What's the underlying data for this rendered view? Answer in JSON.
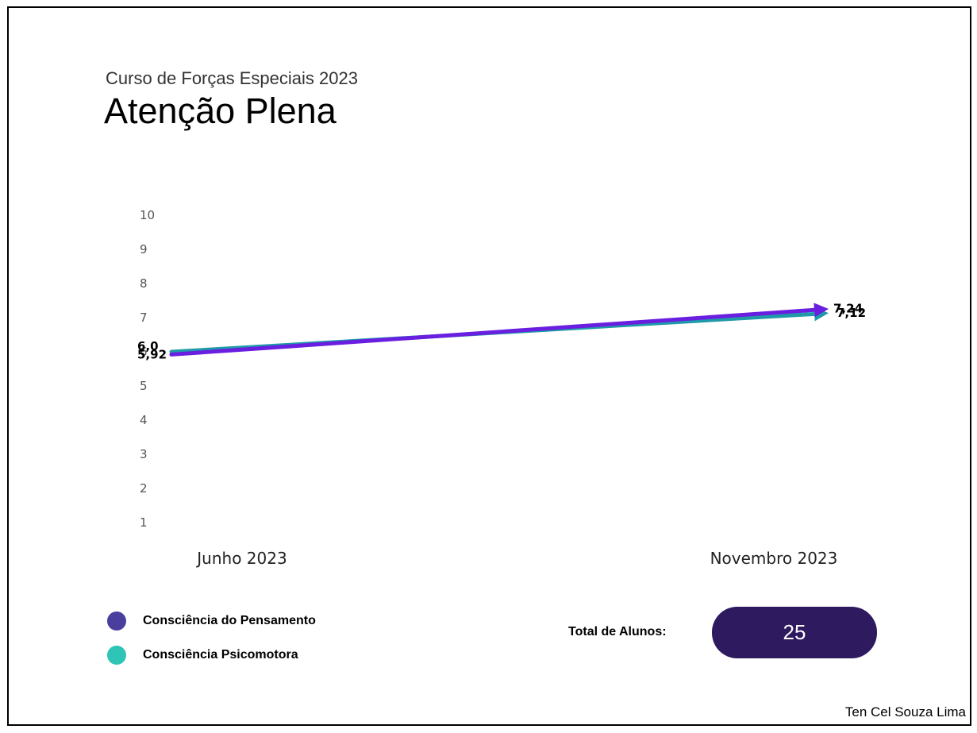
{
  "header": {
    "subtitle": "Curso de Forças Especiais 2023",
    "title": "Atenção Plena"
  },
  "chart_data": {
    "type": "line",
    "y_ticks": [
      "1",
      "2",
      "3",
      "4",
      "5",
      "6",
      "7",
      "8",
      "9",
      "10"
    ],
    "ylim": [
      1,
      10
    ],
    "categories": [
      "Junho 2023",
      "Novembro 2023"
    ],
    "series": [
      {
        "name": "Consciência do Pensamento",
        "color": "#6a1fe0",
        "values": [
          5.92,
          7.24
        ],
        "labels": [
          "5,92",
          "7,24"
        ]
      },
      {
        "name": "Consciência Psicomotora",
        "color": "#1e9aa8",
        "values": [
          6.0,
          7.12
        ],
        "labels": [
          "6,0",
          "7,12"
        ]
      }
    ],
    "grid": false
  },
  "legend": {
    "items": [
      {
        "label": "Consciência do Pensamento",
        "color": "#4b3f9e"
      },
      {
        "label": "Consciência Psicomotora",
        "color": "#2ec4b6"
      }
    ]
  },
  "total": {
    "label": "Total de Alunos:",
    "value": "25",
    "color": "#2e1a5e"
  },
  "credit": "Ten Cel Souza Lima"
}
